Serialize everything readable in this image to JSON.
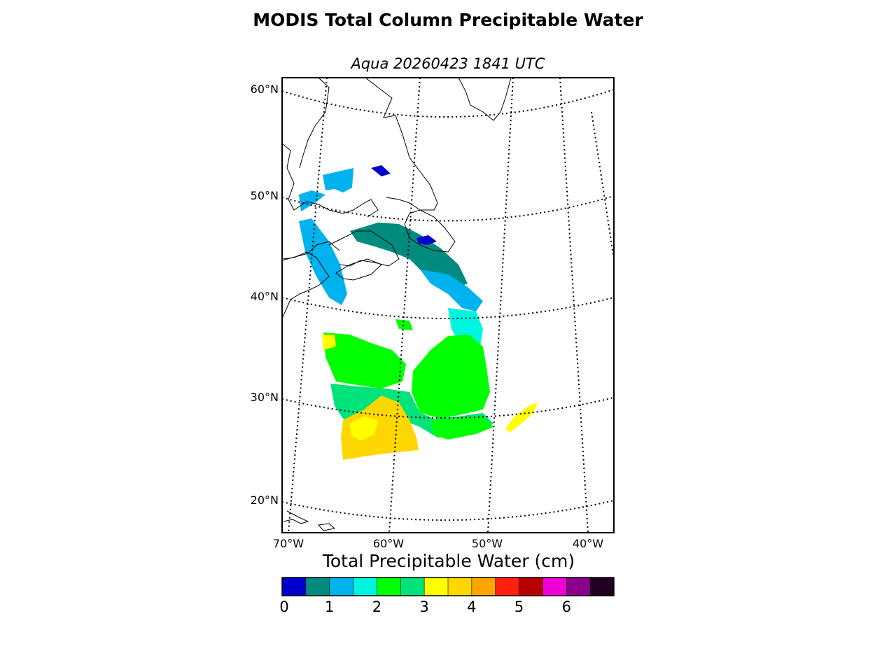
{
  "title": "MODIS Total Column Precipitable Water",
  "subtitle": "Aqua 20260423 1841 UTC",
  "map": {
    "lat_labels": [
      "60°N",
      "50°N",
      "40°N",
      "30°N",
      "20°N"
    ],
    "lon_labels": [
      "70°W",
      "60°W",
      "50°W",
      "40°W"
    ],
    "coastline_color": "#000000",
    "graticule_style": "dotted"
  },
  "colorbar": {
    "label": "Total Precipitable Water (cm)",
    "ticks": [
      "0",
      "1",
      "2",
      "3",
      "4",
      "5",
      "6"
    ],
    "colors": [
      "#0000cd",
      "#008b7e",
      "#00b2ee",
      "#00f5e0",
      "#00ff00",
      "#00e27a",
      "#ffff00",
      "#ffd700",
      "#ffa500",
      "#ff2010",
      "#b80000",
      "#ee00d8",
      "#8b008b",
      "#200020"
    ]
  }
}
